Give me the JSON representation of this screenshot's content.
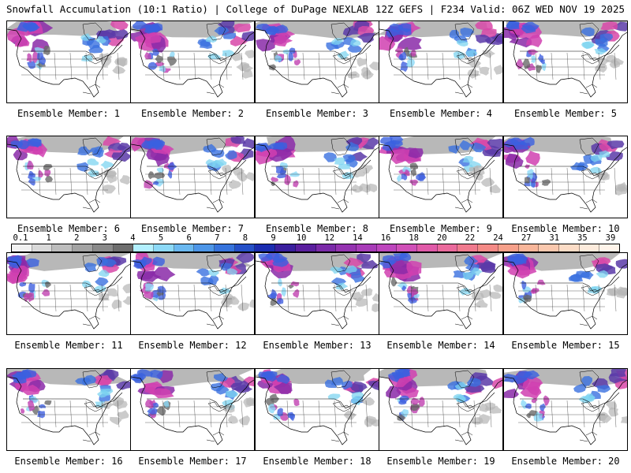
{
  "header": {
    "title_left": "Snowfall Accumulation (10:1 Ratio) | College of DuPage NEXLAB",
    "title_right": "12Z GEFS | F234 Valid: 06Z WED NOV 19 2025"
  },
  "legend": {
    "labels": [
      "0.1",
      "1",
      "2",
      "3",
      "4",
      "5",
      "6",
      "7",
      "8",
      "9",
      "10",
      "12",
      "14",
      "16",
      "18",
      "20",
      "22",
      "24",
      "27",
      "31",
      "35",
      "39"
    ],
    "colors": [
      "#f2f2f2",
      "#d9d9d9",
      "#bdbdbd",
      "#a3a3a3",
      "#8a8a8a",
      "#6e6e6e",
      "#b3f0ff",
      "#8cd9f7",
      "#6ab8f0",
      "#4d96e8",
      "#3673dc",
      "#2550c8",
      "#1a2cb0",
      "#3a1f9e",
      "#5a1f9e",
      "#7a2aa8",
      "#9433b0",
      "#a83cb8",
      "#bd46bd",
      "#d050b8",
      "#e05aa8",
      "#ea6a9c",
      "#f07a8e",
      "#f48a86",
      "#f6a08a",
      "#f8b69a",
      "#fac8ae",
      "#fcdcc6",
      "#fdebdc",
      "#fff4ea"
    ]
  },
  "panels": [
    {
      "caption": "Ensemble Member: 1"
    },
    {
      "caption": "Ensemble Member: 2"
    },
    {
      "caption": "Ensemble Member: 3"
    },
    {
      "caption": "Ensemble Member: 4"
    },
    {
      "caption": "Ensemble Member: 5"
    },
    {
      "caption": "Ensemble Member: 6"
    },
    {
      "caption": "Ensemble Member: 7"
    },
    {
      "caption": "Ensemble Member: 8"
    },
    {
      "caption": "Ensemble Member: 9"
    },
    {
      "caption": "Ensemble Member: 10"
    },
    {
      "caption": "Ensemble Member: 11"
    },
    {
      "caption": "Ensemble Member: 12"
    },
    {
      "caption": "Ensemble Member: 13"
    },
    {
      "caption": "Ensemble Member: 14"
    },
    {
      "caption": "Ensemble Member: 15"
    },
    {
      "caption": "Ensemble Member: 16"
    },
    {
      "caption": "Ensemble Member: 17"
    },
    {
      "caption": "Ensemble Member: 18"
    },
    {
      "caption": "Ensemble Member: 19"
    },
    {
      "caption": "Ensemble Member: 20"
    }
  ]
}
